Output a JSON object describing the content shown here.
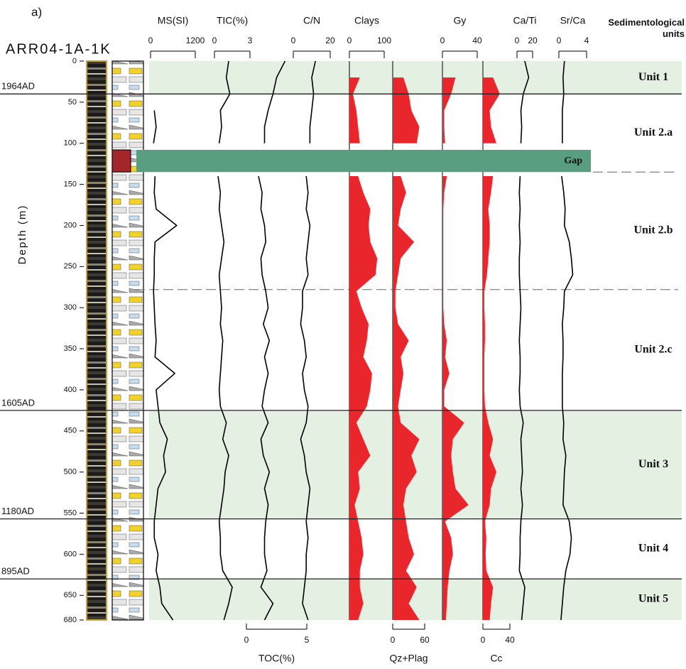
{
  "chart_data": {
    "type": "line",
    "panel_label": "a)",
    "core_name": "ARR04-1A-1K",
    "y_label": "Depth (m)",
    "ylim": [
      0,
      680
    ],
    "yticks": [
      0,
      50,
      100,
      150,
      200,
      250,
      300,
      350,
      400,
      450,
      500,
      550,
      600,
      650,
      680
    ],
    "units_title": "Sedimentological units",
    "dates": [
      {
        "label": "1964AD",
        "depth": 40
      },
      {
        "label": "1605AD",
        "depth": 425
      },
      {
        "label": "1180AD",
        "depth": 557
      },
      {
        "label": "895AD",
        "depth": 630
      }
    ],
    "units": [
      {
        "name": "Unit 1",
        "top": 0,
        "bottom": 40,
        "shaded": true
      },
      {
        "name": "Unit 2.a",
        "top": 40,
        "bottom": 135,
        "shaded": false
      },
      {
        "name": "Unit 2.b",
        "top": 135,
        "bottom": 278,
        "shaded": false
      },
      {
        "name": "Unit 2.c",
        "top": 278,
        "bottom": 425,
        "shaded": false
      },
      {
        "name": "Unit 3",
        "top": 425,
        "bottom": 557,
        "shaded": true
      },
      {
        "name": "Unit 4",
        "top": 557,
        "bottom": 630,
        "shaded": false
      },
      {
        "name": "Unit 5",
        "top": 630,
        "bottom": 680,
        "shaded": true
      }
    ],
    "gap": {
      "label": "Gap",
      "top": 108,
      "bottom": 135,
      "color": "#5a9e82"
    },
    "x": [
      0,
      20,
      40,
      60,
      80,
      100,
      120,
      140,
      160,
      180,
      200,
      220,
      240,
      260,
      280,
      300,
      320,
      340,
      360,
      380,
      400,
      420,
      440,
      460,
      480,
      500,
      520,
      540,
      560,
      580,
      600,
      620,
      640,
      660,
      680
    ],
    "series": [
      {
        "name": "MS(SI)",
        "axis": "top",
        "xlim": [
          0,
          1200
        ],
        "xticks": [
          0,
          1200
        ],
        "filled": false,
        "color": "#000000",
        "values": [
          null,
          null,
          null,
          100,
          150,
          80,
          null,
          120,
          100,
          150,
          700,
          120,
          100,
          100,
          80,
          100,
          120,
          150,
          120,
          650,
          150,
          200,
          250,
          450,
          350,
          400,
          200,
          150,
          100,
          100,
          200,
          150,
          250,
          300,
          600
        ]
      },
      {
        "name": "TIC(%)",
        "axis": "top",
        "xlim": [
          0,
          3
        ],
        "xticks": [
          0,
          3
        ],
        "filled": false,
        "color": "#000000",
        "values": [
          1.2,
          1.0,
          1.3,
          0.5,
          0.6,
          0.4,
          null,
          0.3,
          0.5,
          0.4,
          0.6,
          0.8,
          0.6,
          0.4,
          0.5,
          0.6,
          0.5,
          0.7,
          0.6,
          0.5,
          0.4,
          0.5,
          1.0,
          0.7,
          1.2,
          0.9,
          0.8,
          0.6,
          0.4,
          0.5,
          0.5,
          0.7,
          1.5,
          1.2,
          0.8
        ]
      },
      {
        "name": "TOC(%)",
        "axis": "bottom",
        "xlim": [
          0,
          5
        ],
        "xticks": [
          0,
          5
        ],
        "filled": false,
        "color": "#000000",
        "values": [
          3.2,
          2.5,
          2.2,
          1.8,
          1.5,
          1.5,
          null,
          1.0,
          1.3,
          1.2,
          1.5,
          1.6,
          1.2,
          1.3,
          1.6,
          1.8,
          1.4,
          1.9,
          1.5,
          1.8,
          1.5,
          1.3,
          1.8,
          1.2,
          1.4,
          1.9,
          1.5,
          1.8,
          1.6,
          1.5,
          1.5,
          1.7,
          1.2,
          2.2,
          1.5
        ]
      },
      {
        "name": "C/N",
        "axis": "top",
        "xlim": [
          0,
          20
        ],
        "xticks": [
          0,
          20
        ],
        "filled": false,
        "color": "#000000",
        "values": [
          12,
          10,
          11,
          10,
          9,
          9,
          null,
          7,
          8,
          7,
          9,
          8,
          7,
          8,
          5,
          5,
          4,
          6,
          7,
          5,
          6,
          8,
          7,
          4,
          6,
          7,
          9,
          8,
          7,
          8,
          7,
          7,
          6,
          5,
          8
        ]
      },
      {
        "name": "Clays",
        "axis": "top",
        "xlim": [
          0,
          100
        ],
        "xticks": [
          0,
          100
        ],
        "filled": true,
        "color": "#e8262b",
        "values": [
          null,
          30,
          10,
          20,
          25,
          30,
          null,
          25,
          40,
          60,
          55,
          60,
          80,
          75,
          20,
          35,
          55,
          50,
          40,
          65,
          60,
          50,
          20,
          40,
          60,
          25,
          30,
          15,
          25,
          35,
          40,
          30,
          30,
          40,
          25
        ]
      },
      {
        "name": "Qz+Plag",
        "axis": "bottom",
        "xlim": [
          0,
          60
        ],
        "xticks": [
          0,
          60
        ],
        "filled": true,
        "color": "#e8262b",
        "values": [
          null,
          20,
          30,
          35,
          50,
          45,
          null,
          15,
          25,
          15,
          10,
          40,
          15,
          10,
          5,
          5,
          10,
          30,
          15,
          20,
          15,
          10,
          15,
          50,
          35,
          45,
          25,
          20,
          25,
          30,
          40,
          25,
          45,
          30,
          50
        ]
      },
      {
        "name": "Gy",
        "axis": "top",
        "xlim": [
          0,
          40
        ],
        "xticks": [
          0,
          40
        ],
        "filled": true,
        "color": "#e8262b",
        "values": [
          null,
          15,
          10,
          2,
          2,
          3,
          null,
          5,
          2,
          1,
          1,
          1,
          1,
          1,
          1,
          1,
          2,
          5,
          3,
          8,
          2,
          2,
          25,
          12,
          10,
          12,
          15,
          30,
          3,
          10,
          12,
          8,
          6,
          5,
          4
        ]
      },
      {
        "name": "Cc",
        "axis": "bottom",
        "xlim": [
          0,
          40
        ],
        "xticks": [
          0,
          40
        ],
        "filled": true,
        "color": "#e8262b",
        "values": [
          null,
          15,
          25,
          10,
          12,
          20,
          null,
          15,
          12,
          8,
          10,
          10,
          8,
          6,
          2,
          2,
          3,
          3,
          2,
          2,
          2,
          3,
          8,
          15,
          10,
          20,
          12,
          10,
          3,
          5,
          4,
          5,
          15,
          12,
          10
        ]
      },
      {
        "name": "Ca/Ti",
        "axis": "top",
        "xlim": [
          0,
          20
        ],
        "xticks": [
          0,
          20
        ],
        "filled": false,
        "color": "#000000",
        "values": [
          10,
          15,
          8,
          5,
          6,
          5,
          null,
          4,
          3,
          4,
          3,
          4,
          3,
          3,
          4,
          5,
          4,
          3,
          4,
          4,
          3,
          4,
          8,
          5,
          6,
          7,
          5,
          7,
          5,
          4,
          4,
          3,
          10,
          8,
          6
        ]
      },
      {
        "name": "Sr/Ca",
        "axis": "top",
        "xlim": [
          0,
          4
        ],
        "xticks": [
          0,
          4
        ],
        "filled": false,
        "color": "#000000",
        "values": [
          0.8,
          0.6,
          0.7,
          0.5,
          0.5,
          0.5,
          null,
          0.4,
          0.7,
          0.9,
          0.8,
          1.5,
          1.8,
          2.0,
          0.8,
          0.7,
          0.5,
          0.6,
          0.6,
          0.5,
          0.5,
          0.5,
          0.7,
          0.6,
          1.0,
          0.8,
          0.7,
          0.6,
          1.5,
          1.8,
          1.6,
          1.0,
          0.7,
          0.5,
          0.3
        ]
      }
    ]
  }
}
